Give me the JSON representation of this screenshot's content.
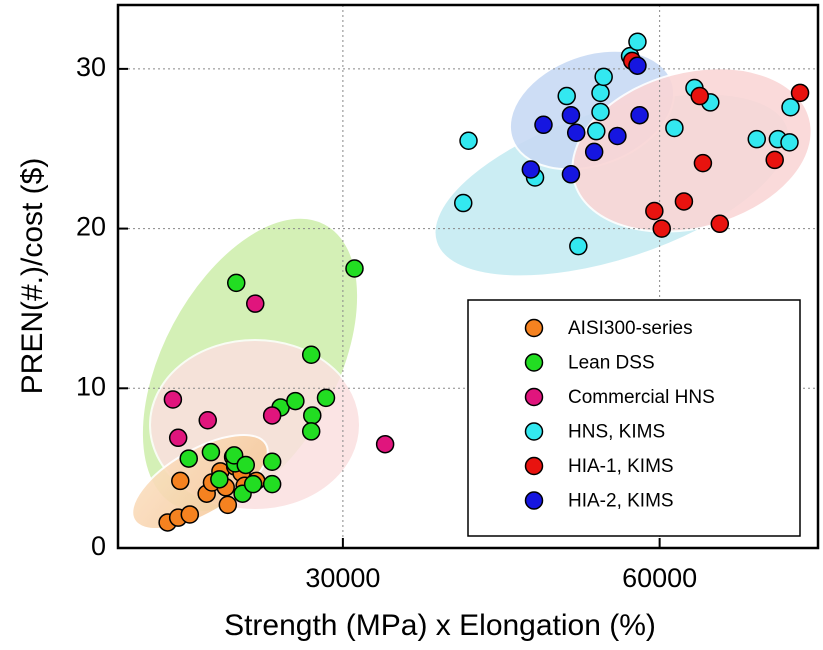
{
  "chart_data": {
    "type": "scatter",
    "x_label": "Strength (MPa) x Elongation (%)",
    "y_label": "PREN(#.)/cost ($)",
    "xlim": [
      8700,
      75000
    ],
    "xticks": [
      30000,
      60000
    ],
    "ylim": [
      0,
      34
    ],
    "yticks": [
      0,
      10,
      20,
      30
    ],
    "grid": true,
    "legend": "lower right",
    "series": [
      {
        "name": "AISI300-series",
        "color": "#f58220",
        "x": [
          13400,
          14400,
          15500,
          14600,
          17100,
          17600,
          18400,
          19600,
          19800,
          19100,
          20400,
          18900,
          20700,
          21800
        ],
        "values": [
          1.6,
          1.9,
          2.1,
          4.2,
          3.4,
          4.1,
          4.8,
          5.7,
          5.1,
          2.7,
          4.7,
          3.8,
          3.9,
          4.2
        ]
      },
      {
        "name": "Lean DSS",
        "color": "#22dd22",
        "x": [
          15400,
          17500,
          18300,
          19800,
          19700,
          20800,
          20500,
          21500,
          23300,
          23300,
          24100,
          25500,
          27000,
          27100,
          27000,
          28400,
          19900,
          31100
        ],
        "values": [
          5.6,
          6.0,
          4.3,
          5.3,
          5.8,
          5.2,
          3.4,
          4.0,
          5.4,
          4.0,
          8.8,
          9.2,
          12.1,
          8.3,
          7.3,
          9.4,
          16.6,
          17.5
        ]
      },
      {
        "name": "Commercial HNS",
        "color": "#e0157d",
        "x": [
          13900,
          14400,
          17200,
          21700,
          23300,
          34000
        ],
        "values": [
          9.3,
          6.9,
          8.0,
          15.3,
          8.3,
          6.5
        ]
      },
      {
        "name": "HNS, KIMS",
        "color": "#33e8f0",
        "x": [
          41400,
          41900,
          48200,
          52300,
          51200,
          54400,
          54700,
          54400,
          54000,
          57200,
          57900,
          63300,
          64800,
          61400,
          69200,
          71200,
          72300,
          72400
        ],
        "values": [
          21.6,
          25.5,
          23.2,
          18.9,
          28.3,
          28.5,
          29.5,
          27.3,
          26.1,
          30.8,
          31.7,
          28.8,
          27.9,
          26.3,
          25.6,
          25.6,
          25.4,
          27.6
        ]
      },
      {
        "name": "HIA-1, KIMS",
        "color": "#e8130f",
        "x": [
          57400,
          59500,
          60200,
          62300,
          64100,
          63800,
          65700,
          70900,
          73300
        ],
        "values": [
          30.5,
          21.1,
          20.0,
          21.7,
          24.1,
          28.3,
          20.3,
          24.3,
          28.5
        ]
      },
      {
        "name": "HIA-2, KIMS",
        "color": "#1616e0",
        "x": [
          47800,
          49000,
          51600,
          51600,
          52100,
          53800,
          56000,
          58100,
          57900
        ],
        "values": [
          23.7,
          26.5,
          27.1,
          23.4,
          26.0,
          24.8,
          25.8,
          27.1,
          30.2
        ]
      }
    ]
  }
}
